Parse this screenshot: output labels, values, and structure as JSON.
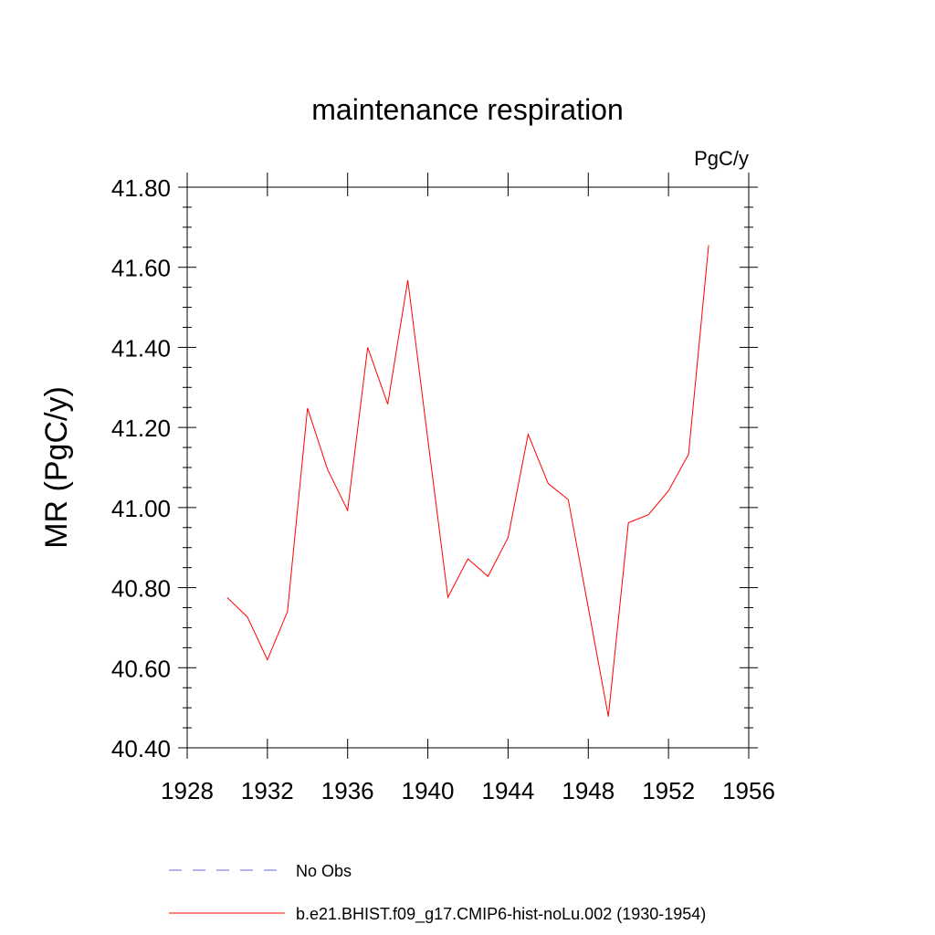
{
  "chart_data": {
    "type": "line",
    "title": "maintenance respiration",
    "units_label": "PgC/y",
    "ylabel": "MR  (PgC/y)",
    "xlabel": "",
    "xlim": [
      1928,
      1956
    ],
    "ylim": [
      40.4,
      41.8
    ],
    "x_ticks": [
      "1928",
      "1932",
      "1936",
      "1940",
      "1944",
      "1948",
      "1952",
      "1956"
    ],
    "y_ticks": [
      "40.40",
      "40.60",
      "40.80",
      "41.00",
      "41.20",
      "41.40",
      "41.60",
      "41.80"
    ],
    "grid": false,
    "legend_position": "bottom",
    "series": [
      {
        "name": "b.e21.BHIST.f09_g17.CMIP6-hist-noLu.002 (1930-1954)",
        "color": "#ff0000",
        "style": "solid",
        "x": [
          1930,
          1931,
          1932,
          1933,
          1934,
          1935,
          1936,
          1937,
          1938,
          1939,
          1940,
          1941,
          1942,
          1943,
          1944,
          1945,
          1946,
          1947,
          1948,
          1949,
          1950,
          1951,
          1952,
          1953,
          1954
        ],
        "values": [
          40.775,
          40.727,
          40.62,
          40.74,
          41.248,
          41.095,
          40.993,
          41.4,
          41.258,
          41.568,
          41.17,
          40.776,
          40.872,
          40.828,
          40.925,
          41.183,
          41.06,
          41.02,
          40.75,
          40.478,
          40.962,
          40.982,
          41.042,
          41.133,
          41.655
        ]
      }
    ],
    "legend": [
      {
        "label": "No Obs",
        "color": "#6a6acd",
        "style": "dashed"
      },
      {
        "label": "b.e21.BHIST.f09_g17.CMIP6-hist-noLu.002 (1930-1954)",
        "color": "#ff0000",
        "style": "solid"
      }
    ]
  }
}
